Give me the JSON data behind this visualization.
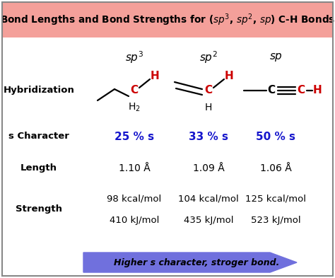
{
  "header_bg": "#F4A09A",
  "body_bg": "#FFFFFF",
  "border_color": "#888888",
  "col_labels": [
    "$\\mathit{sp}^3$",
    "$\\mathit{sp}^2$",
    "$\\mathit{sp}$"
  ],
  "s_character": [
    "25 % s",
    "33 % s",
    "50 % s"
  ],
  "s_char_color": "#1515CC",
  "length": [
    "1.10 Å",
    "1.09 Å",
    "1.06 Å"
  ],
  "strength_kcal": [
    "98 kcal/mol",
    "104 kcal/mol",
    "125 kcal/mol"
  ],
  "strength_kj": [
    "410 kJ/mol",
    "435 kJ/mol",
    "523 kJ/mol"
  ],
  "arrow_text": "Higher s character, stroger bond.",
  "arrow_color": "#7070DD",
  "arrow_text_color": "#000000",
  "red_color": "#CC0000",
  "black_color": "#000000"
}
